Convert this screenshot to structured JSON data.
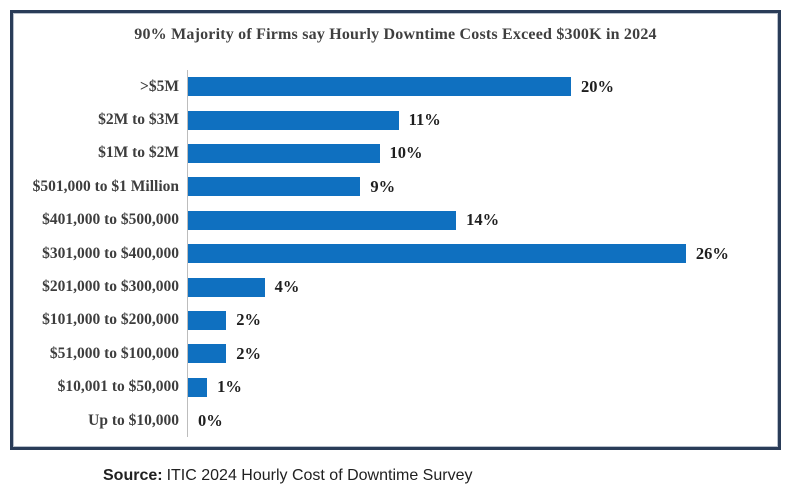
{
  "chart_data": {
    "type": "bar",
    "orientation": "horizontal",
    "title": "90% Majority of Firms say Hourly Downtime Costs Exceed $300K in 2024",
    "categories": [
      ">$5M",
      "$2M to $3M",
      "$1M to $2M",
      "$501,000 to $1 Million",
      "$401,000 to $500,000",
      "$301,000 to $400,000",
      "$201,000 to $300,000",
      "$101,000 to $200,000",
      "$51,000 to $100,000",
      "$10,001 to $50,000",
      "Up to $10,000"
    ],
    "values": [
      20,
      11,
      10,
      9,
      14,
      26,
      4,
      2,
      2,
      1,
      0
    ],
    "value_labels": [
      "20%",
      "11%",
      "10%",
      "9%",
      "14%",
      "26%",
      "4%",
      "2%",
      "2%",
      "1%",
      "0%"
    ],
    "xlabel": "",
    "ylabel": "",
    "xlim": [
      0,
      30
    ],
    "grid": false,
    "legend": false,
    "data_labels": true,
    "bar_color": "#0f70c0",
    "axis_color": "#bdbdbd",
    "title_color": "#3f3f3f",
    "label_color": "#3d3d3d",
    "value_color": "#1f1f1f"
  },
  "frame": {
    "border_color": "#2a3c58",
    "background": "#ffffff"
  },
  "footer": {
    "source_label": "Source:",
    "source_text": "ITIC 2024 Hourly Cost of Downtime Survey"
  }
}
